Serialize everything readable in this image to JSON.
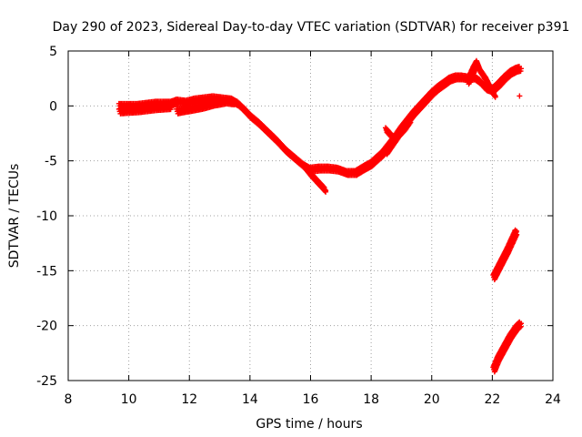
{
  "chart_data": {
    "type": "scatter",
    "title": "Day 290 of 2023, Sidereal Day-to-day VTEC variation (SDTVAR) for receiver p391",
    "xlabel": "GPS time / hours",
    "ylabel": "SDTVAR / TECUs",
    "xlim": [
      8,
      24
    ],
    "ylim": [
      -25,
      5
    ],
    "xticks": [
      8,
      10,
      12,
      14,
      16,
      18,
      20,
      22,
      24
    ],
    "yticks": [
      5,
      0,
      -5,
      -10,
      -15,
      -20,
      -25
    ],
    "grid": true,
    "marker": "+",
    "color": "#ff0000",
    "series": [
      {
        "name": "main-trace",
        "points": [
          [
            9.7,
            0.0
          ],
          [
            10.0,
            0.0
          ],
          [
            10.3,
            0.0
          ],
          [
            10.6,
            0.1
          ],
          [
            10.9,
            0.2
          ],
          [
            11.2,
            0.2
          ],
          [
            11.4,
            0.2
          ],
          [
            11.6,
            0.4
          ],
          [
            11.9,
            0.3
          ],
          [
            12.2,
            0.5
          ],
          [
            12.5,
            0.6
          ],
          [
            12.8,
            0.7
          ],
          [
            13.1,
            0.6
          ],
          [
            13.4,
            0.5
          ],
          [
            13.6,
            0.2
          ],
          [
            13.8,
            -0.3
          ],
          [
            14.0,
            -0.9
          ],
          [
            14.3,
            -1.6
          ],
          [
            14.6,
            -2.4
          ],
          [
            14.9,
            -3.2
          ],
          [
            15.2,
            -4.1
          ],
          [
            15.5,
            -4.8
          ],
          [
            15.8,
            -5.5
          ],
          [
            16.0,
            -5.8
          ],
          [
            16.3,
            -5.7
          ],
          [
            16.6,
            -5.7
          ],
          [
            16.9,
            -5.8
          ],
          [
            17.2,
            -6.1
          ],
          [
            17.5,
            -6.1
          ],
          [
            17.8,
            -5.6
          ],
          [
            18.0,
            -5.3
          ],
          [
            18.2,
            -4.8
          ],
          [
            18.4,
            -4.3
          ],
          [
            18.6,
            -3.6
          ],
          [
            18.8,
            -2.9
          ],
          [
            19.0,
            -2.1
          ],
          [
            19.2,
            -1.4
          ],
          [
            19.4,
            -0.7
          ],
          [
            19.6,
            -0.1
          ],
          [
            19.8,
            0.5
          ],
          [
            20.0,
            1.1
          ],
          [
            20.2,
            1.6
          ],
          [
            20.4,
            2.0
          ],
          [
            20.6,
            2.4
          ],
          [
            20.8,
            2.6
          ],
          [
            21.0,
            2.6
          ],
          [
            21.2,
            2.5
          ],
          [
            21.4,
            2.6
          ],
          [
            21.6,
            2.2
          ],
          [
            21.8,
            1.6
          ],
          [
            22.0,
            1.4
          ],
          [
            22.2,
            1.9
          ],
          [
            22.4,
            2.5
          ],
          [
            22.6,
            3.0
          ],
          [
            22.8,
            3.3
          ],
          [
            22.95,
            3.4
          ]
        ]
      },
      {
        "name": "branch-1",
        "points": [
          [
            9.7,
            -0.5
          ],
          [
            10.3,
            -0.4
          ],
          [
            10.9,
            -0.2
          ],
          [
            11.4,
            -0.1
          ]
        ]
      },
      {
        "name": "branch-2",
        "points": [
          [
            11.6,
            -0.5
          ],
          [
            12.0,
            -0.3
          ],
          [
            12.4,
            -0.1
          ],
          [
            12.8,
            0.2
          ],
          [
            13.2,
            0.4
          ],
          [
            13.5,
            0.3
          ]
        ]
      },
      {
        "name": "branch-3",
        "points": [
          [
            15.8,
            -5.5
          ],
          [
            16.0,
            -6.2
          ],
          [
            16.2,
            -6.8
          ],
          [
            16.4,
            -7.4
          ],
          [
            16.5,
            -7.7
          ]
        ]
      },
      {
        "name": "branch-4",
        "points": [
          [
            18.5,
            -4.2
          ],
          [
            18.7,
            -3.4
          ],
          [
            18.9,
            -2.6
          ],
          [
            19.1,
            -2.0
          ],
          [
            19.3,
            -1.2
          ]
        ]
      },
      {
        "name": "branch-5",
        "points": [
          [
            18.5,
            -2.2
          ],
          [
            18.7,
            -2.8
          ]
        ]
      },
      {
        "name": "branch-6",
        "points": [
          [
            21.2,
            2.2
          ],
          [
            21.4,
            3.4
          ],
          [
            21.5,
            3.9
          ],
          [
            21.6,
            3.2
          ],
          [
            21.8,
            2.4
          ],
          [
            22.0,
            1.3
          ],
          [
            22.1,
            0.9
          ]
        ]
      },
      {
        "name": "outlier",
        "points": [
          [
            22.9,
            0.9
          ]
        ]
      },
      {
        "name": "descending-segment-upper",
        "points": [
          [
            22.05,
            -15.6
          ],
          [
            22.2,
            -14.8
          ],
          [
            22.35,
            -14.0
          ],
          [
            22.5,
            -13.2
          ],
          [
            22.65,
            -12.3
          ],
          [
            22.8,
            -11.4
          ]
        ]
      },
      {
        "name": "descending-segment-lower",
        "points": [
          [
            22.05,
            -24.0
          ],
          [
            22.2,
            -23.0
          ],
          [
            22.4,
            -22.0
          ],
          [
            22.6,
            -21.0
          ],
          [
            22.8,
            -20.2
          ],
          [
            22.95,
            -19.8
          ]
        ]
      }
    ]
  }
}
